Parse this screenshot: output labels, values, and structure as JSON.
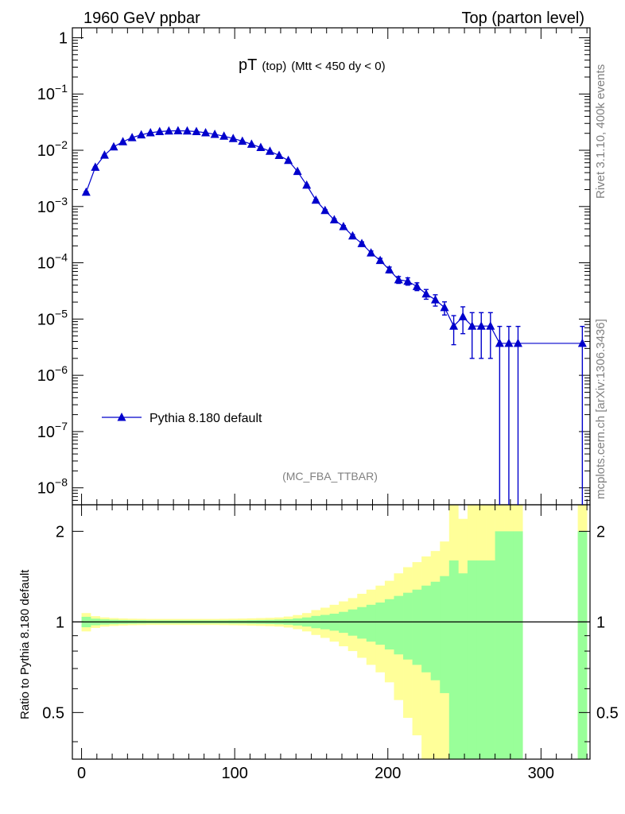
{
  "header": {
    "left_title": "1960 GeV ppbar",
    "right_title": "Top (parton level)"
  },
  "plot_title": {
    "main": "pT",
    "sub1": "(top)",
    "sub2": "(Mtt < 450 dy < 0)"
  },
  "side_label_top": "Rivet 3.1.10,  400k events",
  "side_label_bottom": "mcplots.cern.ch [arXiv:1306.3436]",
  "watermark": "(MC_FBA_TTBAR)",
  "ratio_ylabel": "Ratio to Pythia 8.180 default",
  "colors": {
    "series": "#0000cc",
    "band_inner": "#99ff99",
    "band_outer": "#ffff99",
    "axis": "#000000"
  },
  "chart_data": [
    {
      "type": "line",
      "panel": "main",
      "yscale": "log",
      "ylim": [
        5e-09,
        1.5
      ],
      "xlim": [
        -6,
        332
      ],
      "ytick_labels": [
        {
          "value": 1,
          "mantissa": "1",
          "exp": ""
        },
        {
          "value": 0.1,
          "mantissa": "10",
          "exp": "−1"
        },
        {
          "value": 0.01,
          "mantissa": "10",
          "exp": "−2"
        },
        {
          "value": 0.001,
          "mantissa": "10",
          "exp": "−3"
        },
        {
          "value": 0.0001,
          "mantissa": "10",
          "exp": "−4"
        },
        {
          "value": 1e-05,
          "mantissa": "10",
          "exp": "−5"
        },
        {
          "value": 1e-06,
          "mantissa": "10",
          "exp": "−6"
        },
        {
          "value": 1e-07,
          "mantissa": "10",
          "exp": "−7"
        },
        {
          "value": 1e-08,
          "mantissa": "10",
          "exp": "−8"
        }
      ],
      "legend": {
        "entry": "Pythia 8.180 default",
        "position": "lower-left"
      },
      "series": [
        {
          "name": "Pythia 8.180 default",
          "x": [
            3,
            9,
            15,
            21,
            27,
            33,
            39,
            45,
            51,
            57,
            63,
            69,
            75,
            81,
            87,
            93,
            99,
            105,
            111,
            117,
            123,
            129,
            135,
            141,
            147,
            153,
            159,
            165,
            171,
            177,
            183,
            189,
            195,
            201,
            207,
            213,
            219,
            225,
            231,
            237,
            243,
            249,
            255,
            261,
            267,
            273,
            279,
            285,
            327
          ],
          "y": [
            0.0018,
            0.005,
            0.0082,
            0.0115,
            0.0142,
            0.0168,
            0.0188,
            0.0205,
            0.0215,
            0.022,
            0.0222,
            0.022,
            0.0215,
            0.0205,
            0.0192,
            0.0178,
            0.0162,
            0.0145,
            0.0128,
            0.0112,
            0.0096,
            0.0081,
            0.0066,
            0.0042,
            0.0024,
            0.0013,
            0.00085,
            0.00058,
            0.00044,
            0.0003,
            0.00022,
            0.00015,
            0.00011,
            7.5e-05,
            5e-05,
            4.7e-05,
            3.8e-05,
            2.8e-05,
            2.2e-05,
            1.6e-05,
            7.5e-06,
            1.1e-05,
            7.5e-06,
            7.5e-06,
            7.5e-06,
            3.7e-06,
            3.7e-06,
            3.7e-06,
            3.7e-06
          ],
          "err": [
            4e-05,
            7e-05,
            9e-05,
            0.0001,
            0.00012,
            0.00013,
            0.00014,
            0.00015,
            0.00015,
            0.00015,
            0.00015,
            0.00015,
            0.00015,
            0.00015,
            0.00014,
            0.00014,
            0.00013,
            0.00012,
            0.00012,
            0.00011,
            0.0001,
            9e-05,
            8e-05,
            6e-05,
            5e-05,
            3.5e-05,
            2.8e-05,
            2.4e-05,
            2e-05,
            1.7e-05,
            1.5e-05,
            1.2e-05,
            1e-05,
            9e-06,
            7e-06,
            7e-06,
            6e-06,
            5.5e-06,
            5e-06,
            4.2e-06,
            4e-06,
            5.5e-06,
            5.5e-06,
            5.5e-06,
            5.5e-06,
            3.7e-06,
            3.7e-06,
            3.7e-06,
            3.7e-06
          ]
        }
      ]
    },
    {
      "type": "area",
      "panel": "ratio",
      "yscale": "log",
      "ylim": [
        0.35,
        2.45
      ],
      "xlim": [
        -6,
        332
      ],
      "xticks": [
        0,
        100,
        200,
        300
      ],
      "yticks": [
        0.5,
        1,
        2
      ],
      "reference_line": 1,
      "bin_edges": [
        0,
        6,
        12,
        18,
        24,
        30,
        36,
        42,
        48,
        54,
        60,
        66,
        72,
        78,
        84,
        90,
        96,
        102,
        108,
        114,
        120,
        126,
        132,
        138,
        144,
        150,
        156,
        162,
        168,
        174,
        180,
        186,
        192,
        198,
        204,
        210,
        216,
        222,
        228,
        234,
        240,
        246,
        252,
        258,
        264,
        270,
        276,
        282,
        288,
        324,
        330
      ],
      "band_inner": {
        "lo": [
          0.96,
          0.975,
          0.98,
          0.983,
          0.985,
          0.986,
          0.987,
          0.988,
          0.988,
          0.988,
          0.988,
          0.988,
          0.988,
          0.988,
          0.988,
          0.988,
          0.987,
          0.987,
          0.986,
          0.985,
          0.984,
          0.982,
          0.979,
          0.973,
          0.965,
          0.953,
          0.945,
          0.935,
          0.92,
          0.9,
          0.88,
          0.86,
          0.84,
          0.81,
          0.78,
          0.75,
          0.72,
          0.68,
          0.64,
          0.58,
          0.35,
          0.35,
          0.35,
          0.35,
          0.35,
          0.35,
          0.35,
          0.35,
          null,
          0.35
        ],
        "hi": [
          1.04,
          1.025,
          1.02,
          1.017,
          1.015,
          1.014,
          1.013,
          1.012,
          1.012,
          1.012,
          1.012,
          1.012,
          1.012,
          1.012,
          1.012,
          1.012,
          1.013,
          1.013,
          1.014,
          1.015,
          1.016,
          1.018,
          1.021,
          1.027,
          1.035,
          1.047,
          1.055,
          1.065,
          1.08,
          1.1,
          1.12,
          1.14,
          1.16,
          1.19,
          1.22,
          1.25,
          1.28,
          1.32,
          1.36,
          1.42,
          1.6,
          1.45,
          1.6,
          1.6,
          1.6,
          2.0,
          2.0,
          2.0,
          null,
          2.0
        ]
      },
      "band_outer": {
        "lo": [
          0.93,
          0.955,
          0.965,
          0.97,
          0.973,
          0.975,
          0.976,
          0.977,
          0.977,
          0.977,
          0.977,
          0.977,
          0.977,
          0.977,
          0.977,
          0.976,
          0.975,
          0.974,
          0.972,
          0.97,
          0.968,
          0.965,
          0.958,
          0.946,
          0.93,
          0.905,
          0.885,
          0.86,
          0.83,
          0.8,
          0.76,
          0.72,
          0.68,
          0.63,
          0.55,
          0.48,
          0.42,
          0.35,
          0.35,
          0.35,
          0.35,
          0.35,
          0.35,
          0.35,
          0.35,
          0.35,
          0.35,
          0.35,
          null,
          0.35
        ],
        "hi": [
          1.07,
          1.045,
          1.035,
          1.03,
          1.027,
          1.025,
          1.024,
          1.023,
          1.023,
          1.023,
          1.023,
          1.023,
          1.023,
          1.023,
          1.023,
          1.024,
          1.025,
          1.026,
          1.028,
          1.03,
          1.032,
          1.035,
          1.042,
          1.054,
          1.07,
          1.095,
          1.115,
          1.14,
          1.17,
          1.2,
          1.24,
          1.28,
          1.32,
          1.37,
          1.45,
          1.52,
          1.58,
          1.65,
          1.72,
          1.85,
          2.45,
          2.2,
          2.45,
          2.45,
          2.45,
          2.45,
          2.45,
          2.45,
          null,
          2.45
        ]
      }
    }
  ]
}
